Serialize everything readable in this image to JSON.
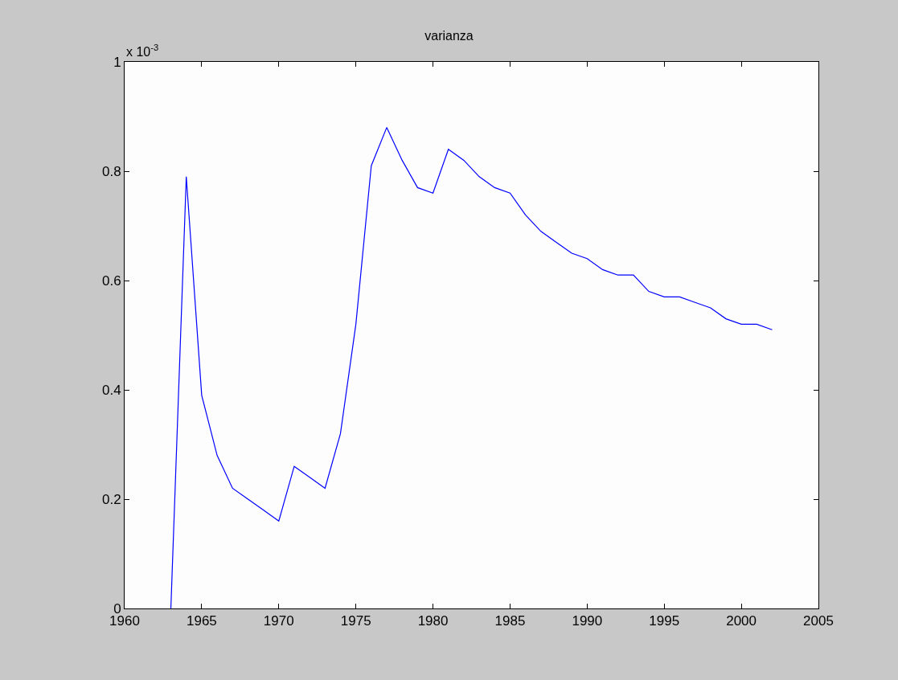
{
  "chart_data": {
    "type": "line",
    "title": "varianza",
    "annotations": [
      "x 10$^{-3}$"
    ],
    "x": [
      1963,
      1964,
      1965,
      1966,
      1967,
      1968,
      1969,
      1970,
      1971,
      1972,
      1973,
      1974,
      1975,
      1976,
      1977,
      1978,
      1979,
      1980,
      1981,
      1982,
      1983,
      1984,
      1985,
      1986,
      1987,
      1988,
      1989,
      1990,
      1991,
      1992,
      1993,
      1994,
      1995,
      1996,
      1997,
      1998,
      1999,
      2000,
      2001,
      2002
    ],
    "series": [
      {
        "color": "#0000ff",
        "values": [
          0,
          0.79,
          0.39,
          0.28,
          0.22,
          0.2,
          0.18,
          0.16,
          0.26,
          0.24,
          0.22,
          0.32,
          0.52,
          0.81,
          0.88,
          0.82,
          0.77,
          0.76,
          0.84,
          0.82,
          0.79,
          0.77,
          0.76,
          0.72,
          0.69,
          0.67,
          0.65,
          0.64,
          0.62,
          0.61,
          0.61,
          0.58,
          0.57,
          0.57,
          0.56,
          0.55,
          0.53,
          0.52,
          0.52,
          0.51
        ]
      }
    ],
    "xlim": [
      1960,
      2005
    ],
    "xticks": [
      1960,
      1965,
      1970,
      1975,
      1980,
      1985,
      1990,
      1995,
      2000,
      2005
    ],
    "ylim": [
      0,
      1
    ],
    "yticks": [
      0,
      0.2,
      0.4,
      0.6,
      0.8,
      1
    ],
    "grid": false,
    "marker": "none",
    "line_style": "solid"
  }
}
